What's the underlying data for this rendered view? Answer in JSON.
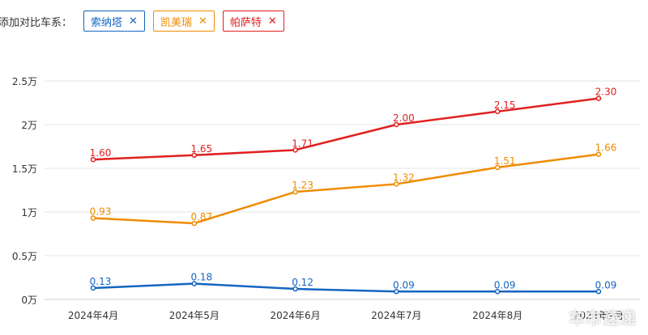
{
  "filter": {
    "label": "添加对比车系：",
    "tags": [
      {
        "name": "索纳塔",
        "color": "#1565c0",
        "close_icon": "close-icon"
      },
      {
        "name": "凯美瑞",
        "color": "#ef8c00",
        "close_icon": "close-icon"
      },
      {
        "name": "帕萨特",
        "color": "#e02020",
        "close_icon": "close-icon"
      }
    ]
  },
  "chart_data": {
    "type": "line",
    "title": "",
    "xlabel": "",
    "ylabel": "",
    "categories": [
      "2024年4月",
      "2024年5月",
      "2024年6月",
      "2024年7月",
      "2024年8月",
      "2024年9月"
    ],
    "y_ticks": [
      "0万",
      "0.5万",
      "1万",
      "1.5万",
      "2万",
      "2.5万"
    ],
    "ylim": [
      0,
      2.5
    ],
    "grid": true,
    "legend": "none",
    "series": [
      {
        "name": "帕萨特",
        "color": "#e02020",
        "values": [
          1.6,
          1.65,
          1.71,
          2.0,
          2.15,
          2.3
        ],
        "labels": [
          "1.60",
          "1.65",
          "1.71",
          "2.00",
          "2.15",
          "2.30"
        ]
      },
      {
        "name": "凯美瑞",
        "color": "#ef8c00",
        "values": [
          0.93,
          0.87,
          1.23,
          1.32,
          1.51,
          1.66
        ],
        "labels": [
          "0.93",
          "0.87",
          "1.23",
          "1.32",
          "1.51",
          "1.66"
        ]
      },
      {
        "name": "索纳塔",
        "color": "#1565c0",
        "values": [
          0.13,
          0.18,
          0.12,
          0.09,
          0.09,
          0.09
        ],
        "labels": [
          "0.13",
          "0.18",
          "0.12",
          "0.09",
          "0.09",
          "0.09"
        ]
      }
    ]
  },
  "watermark": "车市速递"
}
